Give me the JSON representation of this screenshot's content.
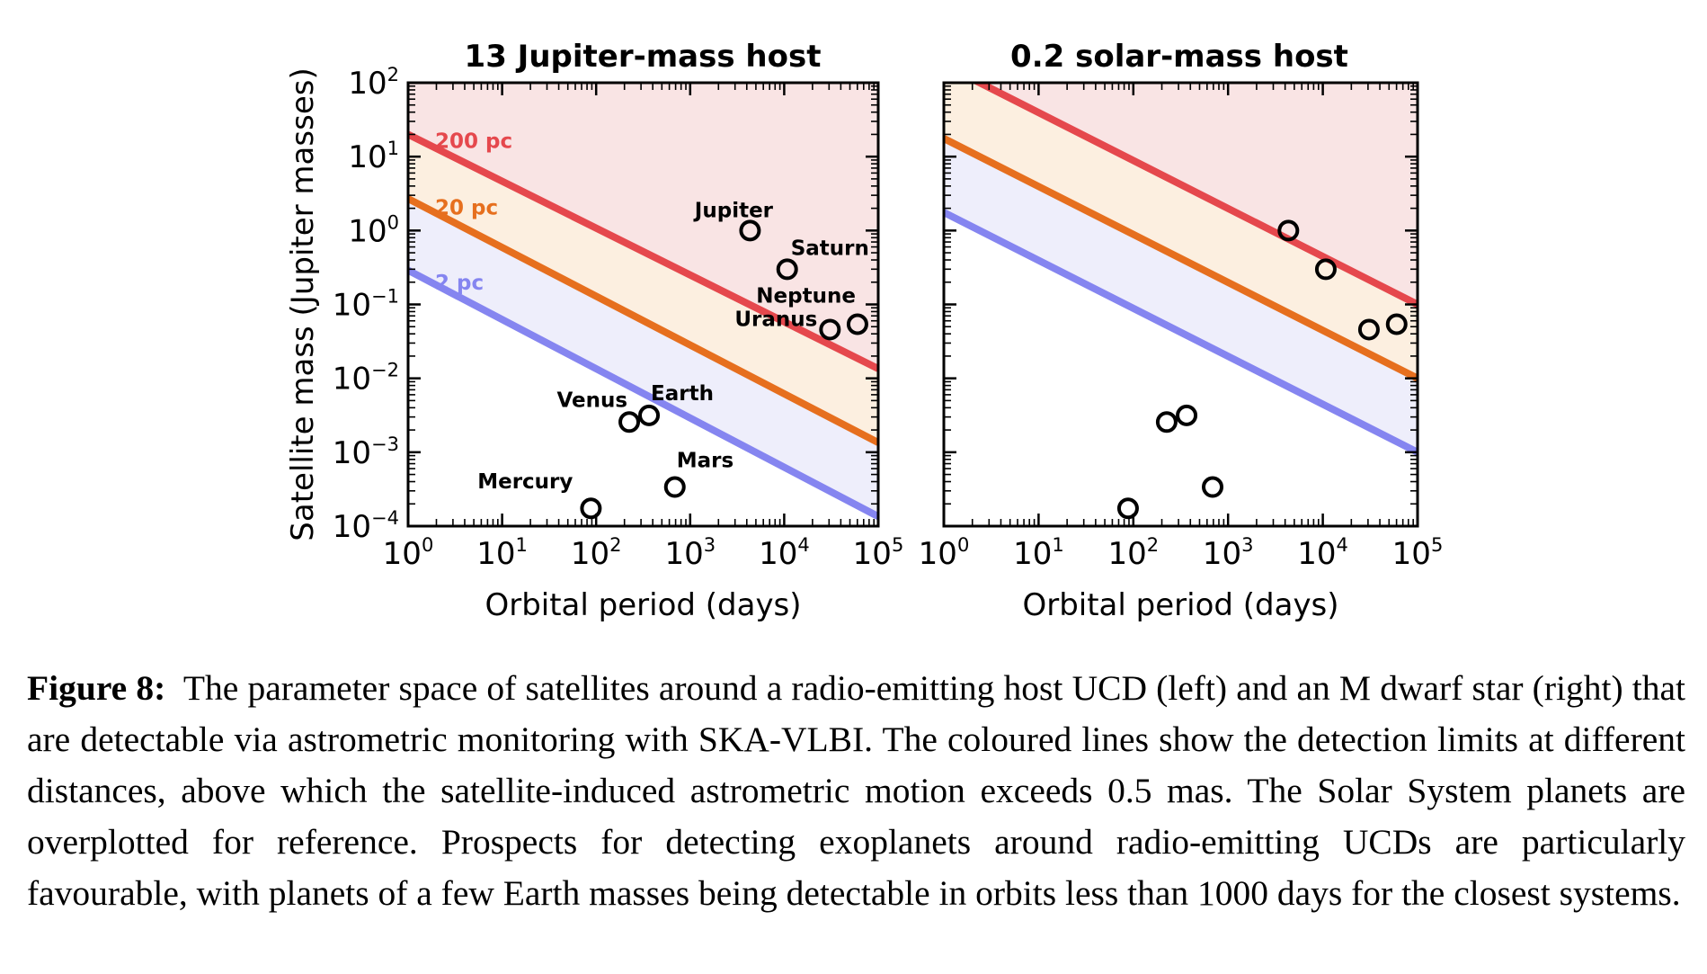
{
  "chart_data": [
    {
      "type": "line",
      "title": "13 Jupiter-mass host",
      "xlabel": "Orbital period (days)",
      "ylabel": "Satellite mass (Jupiter masses)",
      "xscale": "log",
      "yscale": "log",
      "xlim": [
        1,
        100000
      ],
      "ylim": [
        0.0001,
        100
      ],
      "x_tick_exponents": [
        "0",
        "1",
        "2",
        "3",
        "4",
        "5"
      ],
      "y_tick_exponents": [
        "2",
        "1",
        "0",
        "−1",
        "−2",
        "−3",
        "−4"
      ],
      "tick_base": "10",
      "series": [
        {
          "name": "200 pc",
          "color": "#e5484d",
          "fill": "#f9e4e4",
          "x": [
            1,
            100000
          ],
          "y": [
            20,
            0.0135
          ]
        },
        {
          "name": "20 pc",
          "color": "#e66f1e",
          "fill": "#fcefe0",
          "x": [
            1,
            100000
          ],
          "y": [
            2.7,
            0.00135
          ]
        },
        {
          "name": "2 pc",
          "color": "#8585f0",
          "fill": "#eeeefb",
          "x": [
            1,
            100000
          ],
          "y": [
            0.29,
            0.000135
          ]
        }
      ],
      "planets": [
        {
          "name": "Mercury",
          "period": 88,
          "mass": 0.000174
        },
        {
          "name": "Venus",
          "period": 225,
          "mass": 0.00256
        },
        {
          "name": "Earth",
          "period": 365,
          "mass": 0.00315
        },
        {
          "name": "Mars",
          "period": 687,
          "mass": 0.000338
        },
        {
          "name": "Jupiter",
          "period": 4333,
          "mass": 1.0
        },
        {
          "name": "Saturn",
          "period": 10759,
          "mass": 0.299
        },
        {
          "name": "Uranus",
          "period": 30687,
          "mass": 0.0457
        },
        {
          "name": "Neptune",
          "period": 60190,
          "mass": 0.054
        }
      ]
    },
    {
      "type": "line",
      "title": "0.2 solar-mass host",
      "xlabel": "Orbital period (days)",
      "ylabel": "",
      "xscale": "log",
      "yscale": "log",
      "xlim": [
        1,
        100000
      ],
      "ylim": [
        0.0001,
        100
      ],
      "x_tick_exponents": [
        "0",
        "1",
        "2",
        "3",
        "4",
        "5"
      ],
      "tick_base": "10",
      "series": [
        {
          "color": "#e5484d",
          "fill": "#f9e4e4",
          "x": [
            1,
            100000
          ],
          "y": [
            176,
            0.1
          ]
        },
        {
          "color": "#e66f1e",
          "fill": "#fcefe0",
          "x": [
            1,
            100000
          ],
          "y": [
            17.6,
            0.01
          ]
        },
        {
          "color": "#8585f0",
          "fill": "#eeeefb",
          "x": [
            1,
            100000
          ],
          "y": [
            1.76,
            0.001
          ]
        }
      ],
      "planets": [
        {
          "period": 88,
          "mass": 0.000174
        },
        {
          "period": 225,
          "mass": 0.00256
        },
        {
          "period": 365,
          "mass": 0.00315
        },
        {
          "period": 687,
          "mass": 0.000338
        },
        {
          "period": 4333,
          "mass": 1.0
        },
        {
          "period": 10759,
          "mass": 0.299
        },
        {
          "period": 30687,
          "mass": 0.0457
        },
        {
          "period": 60190,
          "mass": 0.054
        }
      ]
    }
  ],
  "caption": {
    "label": "Figure 8:",
    "text": "The parameter space of satellites around a radio-emitting host UCD (left) and an M dwarf star (right) that are detectable via astrometric monitoring with SKA-VLBI. The coloured lines show the detection limits at different distances, above which the satellite-induced astrometric motion exceeds 0.5 mas. The Solar System planets are overplotted for reference. Prospects for detecting exoplanets around radio-emitting UCDs are particularly favourable, with planets of a few Earth masses being detectable in orbits less than 1000 days for the closest systems."
  }
}
